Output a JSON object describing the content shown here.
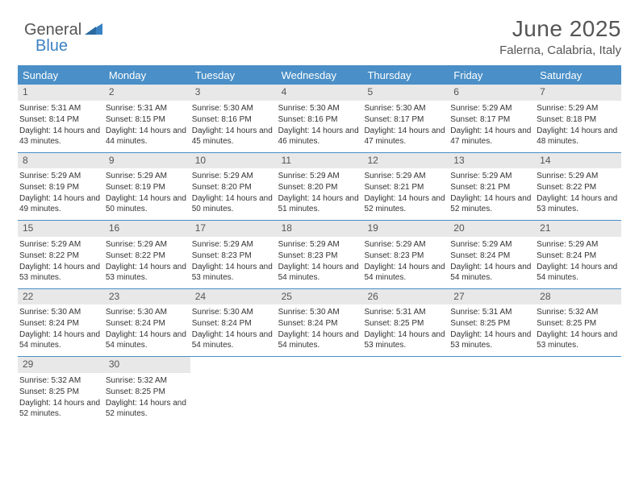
{
  "logo": {
    "general": "General",
    "blue": "Blue"
  },
  "header": {
    "title": "June 2025",
    "subtitle": "Falerna, Calabria, Italy"
  },
  "dow": [
    "Sunday",
    "Monday",
    "Tuesday",
    "Wednesday",
    "Thursday",
    "Friday",
    "Saturday"
  ],
  "labels": {
    "sunrise": "Sunrise:",
    "sunset": "Sunset:",
    "daylight": "Daylight:"
  },
  "colors": {
    "header_bg": "#4a8fc7",
    "header_text": "#ffffff",
    "daynum_bg": "#e8e8e8",
    "border": "#4a8fc7",
    "text": "#333333",
    "logo_gray": "#555555",
    "logo_blue": "#3b82c4"
  },
  "days": [
    {
      "n": 1,
      "sr": "5:31 AM",
      "ss": "8:14 PM",
      "dl": "14 hours and 43 minutes."
    },
    {
      "n": 2,
      "sr": "5:31 AM",
      "ss": "8:15 PM",
      "dl": "14 hours and 44 minutes."
    },
    {
      "n": 3,
      "sr": "5:30 AM",
      "ss": "8:16 PM",
      "dl": "14 hours and 45 minutes."
    },
    {
      "n": 4,
      "sr": "5:30 AM",
      "ss": "8:16 PM",
      "dl": "14 hours and 46 minutes."
    },
    {
      "n": 5,
      "sr": "5:30 AM",
      "ss": "8:17 PM",
      "dl": "14 hours and 47 minutes."
    },
    {
      "n": 6,
      "sr": "5:29 AM",
      "ss": "8:17 PM",
      "dl": "14 hours and 47 minutes."
    },
    {
      "n": 7,
      "sr": "5:29 AM",
      "ss": "8:18 PM",
      "dl": "14 hours and 48 minutes."
    },
    {
      "n": 8,
      "sr": "5:29 AM",
      "ss": "8:19 PM",
      "dl": "14 hours and 49 minutes."
    },
    {
      "n": 9,
      "sr": "5:29 AM",
      "ss": "8:19 PM",
      "dl": "14 hours and 50 minutes."
    },
    {
      "n": 10,
      "sr": "5:29 AM",
      "ss": "8:20 PM",
      "dl": "14 hours and 50 minutes."
    },
    {
      "n": 11,
      "sr": "5:29 AM",
      "ss": "8:20 PM",
      "dl": "14 hours and 51 minutes."
    },
    {
      "n": 12,
      "sr": "5:29 AM",
      "ss": "8:21 PM",
      "dl": "14 hours and 52 minutes."
    },
    {
      "n": 13,
      "sr": "5:29 AM",
      "ss": "8:21 PM",
      "dl": "14 hours and 52 minutes."
    },
    {
      "n": 14,
      "sr": "5:29 AM",
      "ss": "8:22 PM",
      "dl": "14 hours and 53 minutes."
    },
    {
      "n": 15,
      "sr": "5:29 AM",
      "ss": "8:22 PM",
      "dl": "14 hours and 53 minutes."
    },
    {
      "n": 16,
      "sr": "5:29 AM",
      "ss": "8:22 PM",
      "dl": "14 hours and 53 minutes."
    },
    {
      "n": 17,
      "sr": "5:29 AM",
      "ss": "8:23 PM",
      "dl": "14 hours and 53 minutes."
    },
    {
      "n": 18,
      "sr": "5:29 AM",
      "ss": "8:23 PM",
      "dl": "14 hours and 54 minutes."
    },
    {
      "n": 19,
      "sr": "5:29 AM",
      "ss": "8:23 PM",
      "dl": "14 hours and 54 minutes."
    },
    {
      "n": 20,
      "sr": "5:29 AM",
      "ss": "8:24 PM",
      "dl": "14 hours and 54 minutes."
    },
    {
      "n": 21,
      "sr": "5:29 AM",
      "ss": "8:24 PM",
      "dl": "14 hours and 54 minutes."
    },
    {
      "n": 22,
      "sr": "5:30 AM",
      "ss": "8:24 PM",
      "dl": "14 hours and 54 minutes."
    },
    {
      "n": 23,
      "sr": "5:30 AM",
      "ss": "8:24 PM",
      "dl": "14 hours and 54 minutes."
    },
    {
      "n": 24,
      "sr": "5:30 AM",
      "ss": "8:24 PM",
      "dl": "14 hours and 54 minutes."
    },
    {
      "n": 25,
      "sr": "5:30 AM",
      "ss": "8:24 PM",
      "dl": "14 hours and 54 minutes."
    },
    {
      "n": 26,
      "sr": "5:31 AM",
      "ss": "8:25 PM",
      "dl": "14 hours and 53 minutes."
    },
    {
      "n": 27,
      "sr": "5:31 AM",
      "ss": "8:25 PM",
      "dl": "14 hours and 53 minutes."
    },
    {
      "n": 28,
      "sr": "5:32 AM",
      "ss": "8:25 PM",
      "dl": "14 hours and 53 minutes."
    },
    {
      "n": 29,
      "sr": "5:32 AM",
      "ss": "8:25 PM",
      "dl": "14 hours and 52 minutes."
    },
    {
      "n": 30,
      "sr": "5:32 AM",
      "ss": "8:25 PM",
      "dl": "14 hours and 52 minutes."
    }
  ],
  "layout": {
    "start_dow": 0,
    "days_in_month": 30,
    "cols": 7
  }
}
